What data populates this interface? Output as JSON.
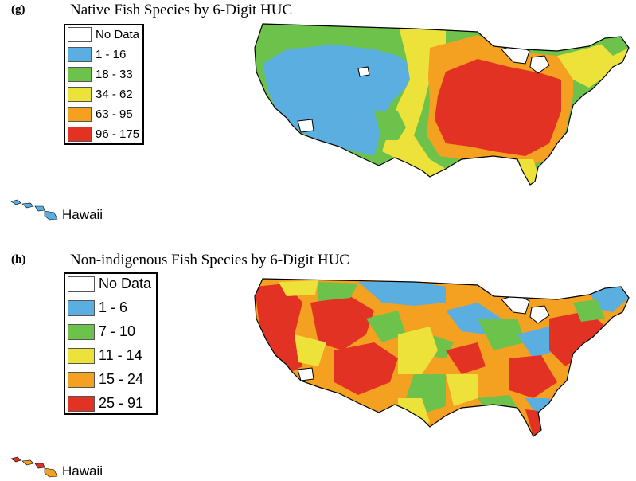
{
  "colors": {
    "no_data": "#ffffff",
    "c1": "#5aafe0",
    "c2": "#6cc24a",
    "c3": "#ece23a",
    "c4": "#f4a020",
    "c5": "#e23224"
  },
  "panel_g": {
    "label": "(g)",
    "title": "Native Fish Species by 6-Digit HUC",
    "legend": [
      {
        "label": "No Data",
        "color_key": "no_data"
      },
      {
        "label": "1 - 16",
        "color_key": "c1"
      },
      {
        "label": "18 - 33",
        "color_key": "c2"
      },
      {
        "label": "34 - 62",
        "color_key": "c3"
      },
      {
        "label": "63 - 95",
        "color_key": "c4"
      },
      {
        "label": "96 - 175",
        "color_key": "c5"
      }
    ],
    "inset_label": "Hawaii"
  },
  "panel_h": {
    "label": "(h)",
    "title": "Non-indigenous Fish Species by 6-Digit HUC",
    "legend": [
      {
        "label": "No Data",
        "color_key": "no_data"
      },
      {
        "label": "1 - 6",
        "color_key": "c1"
      },
      {
        "label": "7 - 10",
        "color_key": "c2"
      },
      {
        "label": "11 - 14",
        "color_key": "c3"
      },
      {
        "label": "15 - 24",
        "color_key": "c4"
      },
      {
        "label": "25 - 91",
        "color_key": "c5"
      }
    ],
    "inset_label": "Hawaii"
  }
}
